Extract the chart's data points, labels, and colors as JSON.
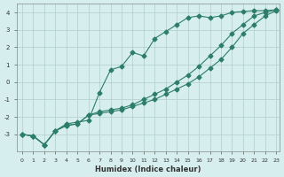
{
  "xlabel": "Humidex (Indice chaleur)",
  "ylabel": "",
  "background_color": "#d6eeee",
  "grid_color": "#b0cccc",
  "line_color": "#2d7d6d",
  "xlim": [
    0,
    23
  ],
  "ylim": [
    -4,
    4.5
  ],
  "xticks": [
    0,
    1,
    2,
    3,
    4,
    5,
    6,
    7,
    8,
    9,
    10,
    11,
    12,
    13,
    14,
    15,
    16,
    17,
    18,
    19,
    20,
    21,
    22,
    23
  ],
  "yticks": [
    -3,
    -2,
    -1,
    0,
    1,
    2,
    3,
    4
  ],
  "line1_x": [
    0,
    1,
    2,
    3,
    4,
    5,
    6,
    7,
    8,
    9,
    10,
    11,
    12,
    13,
    14,
    15,
    16,
    17,
    18,
    19,
    20,
    21,
    22,
    23
  ],
  "line1_y": [
    -3.0,
    -3.1,
    -3.6,
    -2.8,
    -2.4,
    -2.3,
    -2.2,
    -0.6,
    0.7,
    0.9,
    1.7,
    1.5,
    2.5,
    2.9,
    3.3,
    3.7,
    3.8,
    3.7,
    3.8,
    4.0,
    4.05,
    4.1,
    4.1,
    4.15
  ],
  "line2_x": [
    0,
    1,
    2,
    3,
    4,
    5,
    6,
    7,
    8,
    9,
    10,
    11,
    12,
    13,
    14,
    15,
    16,
    17,
    18,
    19,
    20,
    21,
    22,
    23
  ],
  "line2_y": [
    -3.0,
    -3.1,
    -3.6,
    -2.8,
    -2.5,
    -2.4,
    -1.9,
    -1.8,
    -1.7,
    -1.6,
    -1.4,
    -1.2,
    -1.0,
    -0.7,
    -0.4,
    -0.1,
    0.3,
    0.8,
    1.3,
    2.0,
    2.8,
    3.3,
    3.8,
    4.1
  ],
  "line3_x": [
    0,
    1,
    2,
    3,
    4,
    5,
    6,
    7,
    8,
    9,
    10,
    11,
    12,
    13,
    14,
    15,
    16,
    17,
    18,
    19,
    20,
    21,
    22,
    23
  ],
  "line3_y": [
    -3.0,
    -3.1,
    -3.6,
    -2.8,
    -2.5,
    -2.4,
    -1.9,
    -1.7,
    -1.6,
    -1.5,
    -1.3,
    -1.0,
    -0.7,
    -0.4,
    0.0,
    0.4,
    0.9,
    1.5,
    2.1,
    2.8,
    3.3,
    3.8,
    4.0,
    4.15
  ]
}
